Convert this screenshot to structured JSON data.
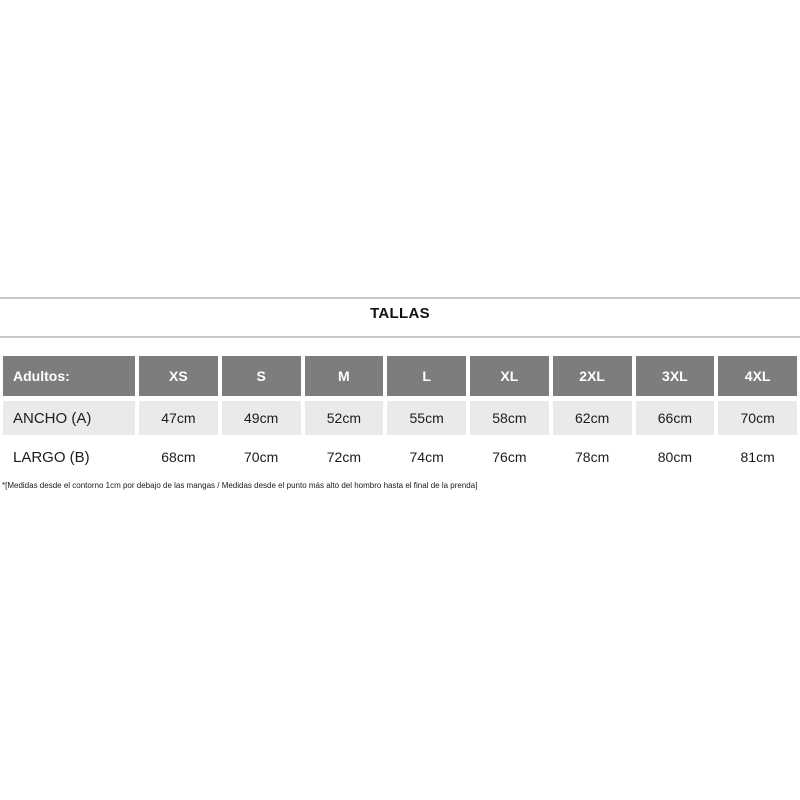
{
  "section": {
    "title": "TALLAS"
  },
  "size_table": {
    "header": {
      "group_label": "Adultos:",
      "sizes": [
        "XS",
        "S",
        "M",
        "L",
        "XL",
        "2XL",
        "3XL",
        "4XL"
      ]
    },
    "rows": [
      {
        "label": "ANCHO (A)",
        "values": [
          "47cm",
          "49cm",
          "52cm",
          "55cm",
          "58cm",
          "62cm",
          "66cm",
          "70cm"
        ]
      },
      {
        "label": "LARGO (B)",
        "values": [
          "68cm",
          "70cm",
          "72cm",
          "74cm",
          "76cm",
          "78cm",
          "80cm",
          "81cm"
        ]
      }
    ]
  },
  "footnote": "*[Medidas desde el contorno 1cm por debajo de las mangas / Medidas desde el punto más alto del hombro hasta el final de la prenda]",
  "colors": {
    "header_bg": "#7d7d7d",
    "header_text": "#ffffff",
    "shaded_row_bg": "#eaeaea",
    "body_text": "#1c1c1c",
    "rule": "#c8c8c8"
  }
}
